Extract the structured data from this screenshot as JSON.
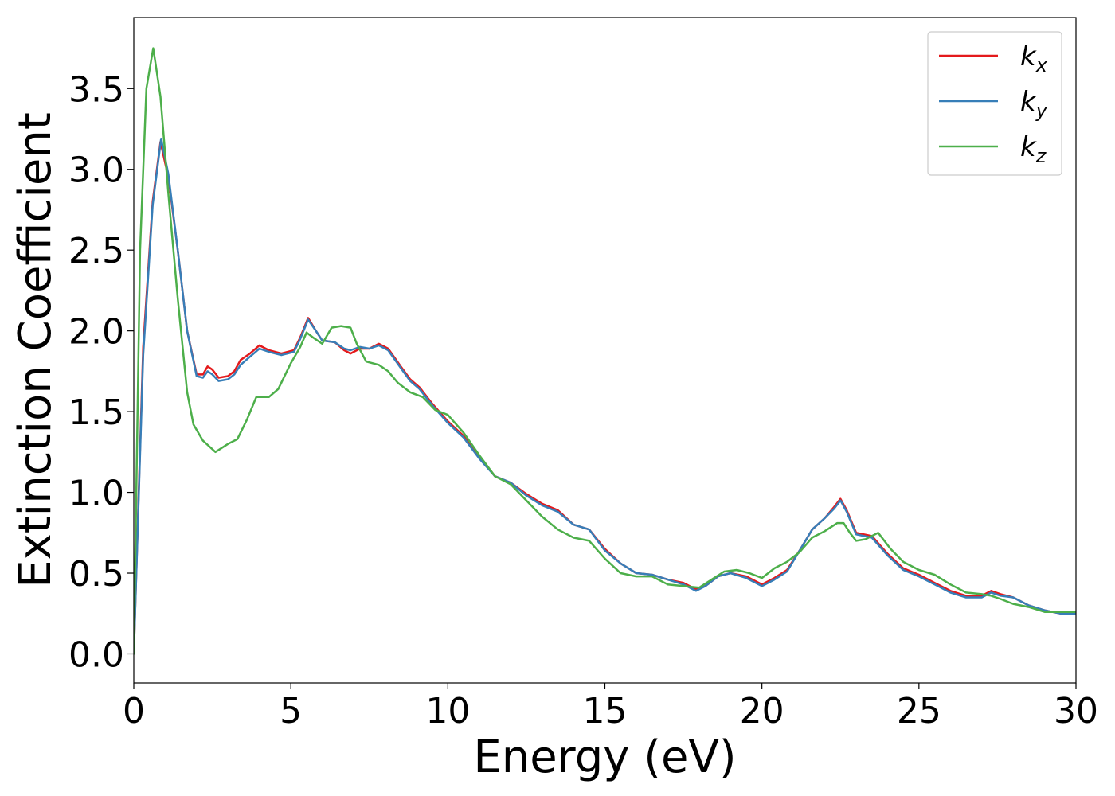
{
  "chart_data": {
    "type": "line",
    "title": "",
    "xlabel": "Energy (eV)",
    "ylabel": "Extinction Coefficient",
    "xlim": [
      0,
      30
    ],
    "ylim": [
      -0.18,
      3.94
    ],
    "xticks": [
      0,
      5,
      10,
      15,
      20,
      25,
      30
    ],
    "xtick_labels": [
      "0",
      "5",
      "10",
      "15",
      "20",
      "25",
      "30"
    ],
    "yticks": [
      0.0,
      0.5,
      1.0,
      1.5,
      2.0,
      2.5,
      3.0,
      3.5
    ],
    "ytick_labels": [
      "0.0",
      "0.5",
      "1.0",
      "1.5",
      "2.0",
      "2.5",
      "3.0",
      "3.5"
    ],
    "grid": false,
    "legend_position": "top-right",
    "series": [
      {
        "name": "k",
        "subscript": "x",
        "color": "#e41a1c",
        "points": [
          [
            0,
            0
          ],
          [
            0.3,
            1.9
          ],
          [
            0.6,
            2.8
          ],
          [
            0.85,
            3.17
          ],
          [
            1.1,
            2.95
          ],
          [
            1.4,
            2.5
          ],
          [
            1.7,
            2.0
          ],
          [
            2.0,
            1.73
          ],
          [
            2.2,
            1.73
          ],
          [
            2.35,
            1.78
          ],
          [
            2.5,
            1.76
          ],
          [
            2.7,
            1.71
          ],
          [
            3.0,
            1.72
          ],
          [
            3.2,
            1.75
          ],
          [
            3.4,
            1.82
          ],
          [
            3.7,
            1.86
          ],
          [
            4.0,
            1.91
          ],
          [
            4.3,
            1.88
          ],
          [
            4.7,
            1.86
          ],
          [
            5.1,
            1.88
          ],
          [
            5.3,
            1.96
          ],
          [
            5.55,
            2.08
          ],
          [
            5.8,
            2.0
          ],
          [
            6.0,
            1.94
          ],
          [
            6.4,
            1.93
          ],
          [
            6.7,
            1.88
          ],
          [
            6.9,
            1.86
          ],
          [
            7.2,
            1.89
          ],
          [
            7.5,
            1.89
          ],
          [
            7.8,
            1.92
          ],
          [
            8.1,
            1.89
          ],
          [
            8.5,
            1.78
          ],
          [
            8.8,
            1.7
          ],
          [
            9.1,
            1.65
          ],
          [
            9.5,
            1.55
          ],
          [
            10.0,
            1.44
          ],
          [
            10.5,
            1.35
          ],
          [
            11.0,
            1.22
          ],
          [
            11.5,
            1.1
          ],
          [
            12.0,
            1.06
          ],
          [
            12.5,
            0.99
          ],
          [
            13.0,
            0.93
          ],
          [
            13.5,
            0.89
          ],
          [
            14.0,
            0.8
          ],
          [
            14.5,
            0.77
          ],
          [
            15.0,
            0.65
          ],
          [
            15.5,
            0.56
          ],
          [
            16.0,
            0.5
          ],
          [
            16.5,
            0.49
          ],
          [
            17.0,
            0.46
          ],
          [
            17.5,
            0.44
          ],
          [
            17.9,
            0.4
          ],
          [
            18.2,
            0.42
          ],
          [
            18.6,
            0.48
          ],
          [
            19.0,
            0.5
          ],
          [
            19.5,
            0.48
          ],
          [
            20.0,
            0.43
          ],
          [
            20.4,
            0.47
          ],
          [
            20.8,
            0.52
          ],
          [
            21.2,
            0.64
          ],
          [
            21.6,
            0.77
          ],
          [
            22.0,
            0.84
          ],
          [
            22.3,
            0.91
          ],
          [
            22.5,
            0.96
          ],
          [
            22.7,
            0.89
          ],
          [
            23.0,
            0.75
          ],
          [
            23.5,
            0.73
          ],
          [
            24.0,
            0.62
          ],
          [
            24.5,
            0.53
          ],
          [
            25.0,
            0.49
          ],
          [
            25.5,
            0.44
          ],
          [
            26.0,
            0.39
          ],
          [
            26.5,
            0.36
          ],
          [
            27.0,
            0.36
          ],
          [
            27.3,
            0.39
          ],
          [
            27.6,
            0.37
          ],
          [
            28.0,
            0.35
          ],
          [
            28.5,
            0.3
          ],
          [
            29.0,
            0.27
          ],
          [
            29.5,
            0.25
          ],
          [
            30.0,
            0.25
          ]
        ]
      },
      {
        "name": "k",
        "subscript": "y",
        "color": "#377eb8",
        "points": [
          [
            0,
            0
          ],
          [
            0.3,
            1.85
          ],
          [
            0.6,
            2.78
          ],
          [
            0.87,
            3.19
          ],
          [
            1.1,
            2.97
          ],
          [
            1.4,
            2.5
          ],
          [
            1.7,
            2.0
          ],
          [
            2.0,
            1.72
          ],
          [
            2.2,
            1.71
          ],
          [
            2.35,
            1.75
          ],
          [
            2.5,
            1.73
          ],
          [
            2.7,
            1.69
          ],
          [
            3.0,
            1.7
          ],
          [
            3.2,
            1.73
          ],
          [
            3.4,
            1.79
          ],
          [
            3.7,
            1.84
          ],
          [
            4.0,
            1.89
          ],
          [
            4.3,
            1.87
          ],
          [
            4.7,
            1.85
          ],
          [
            5.1,
            1.87
          ],
          [
            5.3,
            1.95
          ],
          [
            5.55,
            2.07
          ],
          [
            5.8,
            2.0
          ],
          [
            6.0,
            1.94
          ],
          [
            6.4,
            1.93
          ],
          [
            6.7,
            1.89
          ],
          [
            6.9,
            1.88
          ],
          [
            7.2,
            1.9
          ],
          [
            7.5,
            1.89
          ],
          [
            7.8,
            1.91
          ],
          [
            8.1,
            1.88
          ],
          [
            8.5,
            1.77
          ],
          [
            8.8,
            1.69
          ],
          [
            9.1,
            1.64
          ],
          [
            9.5,
            1.54
          ],
          [
            10.0,
            1.43
          ],
          [
            10.5,
            1.34
          ],
          [
            11.0,
            1.21
          ],
          [
            11.5,
            1.1
          ],
          [
            12.0,
            1.06
          ],
          [
            12.5,
            0.98
          ],
          [
            13.0,
            0.92
          ],
          [
            13.5,
            0.88
          ],
          [
            14.0,
            0.8
          ],
          [
            14.5,
            0.77
          ],
          [
            15.0,
            0.64
          ],
          [
            15.5,
            0.56
          ],
          [
            16.0,
            0.5
          ],
          [
            16.5,
            0.49
          ],
          [
            17.0,
            0.46
          ],
          [
            17.5,
            0.43
          ],
          [
            17.9,
            0.39
          ],
          [
            18.2,
            0.42
          ],
          [
            18.6,
            0.48
          ],
          [
            19.0,
            0.5
          ],
          [
            19.5,
            0.47
          ],
          [
            20.0,
            0.42
          ],
          [
            20.4,
            0.46
          ],
          [
            20.8,
            0.51
          ],
          [
            21.2,
            0.64
          ],
          [
            21.6,
            0.77
          ],
          [
            22.0,
            0.84
          ],
          [
            22.3,
            0.9
          ],
          [
            22.5,
            0.95
          ],
          [
            22.7,
            0.88
          ],
          [
            23.0,
            0.74
          ],
          [
            23.5,
            0.72
          ],
          [
            24.0,
            0.61
          ],
          [
            24.5,
            0.52
          ],
          [
            25.0,
            0.48
          ],
          [
            25.5,
            0.43
          ],
          [
            26.0,
            0.38
          ],
          [
            26.5,
            0.35
          ],
          [
            27.0,
            0.35
          ],
          [
            27.3,
            0.38
          ],
          [
            27.6,
            0.36
          ],
          [
            28.0,
            0.35
          ],
          [
            28.5,
            0.3
          ],
          [
            29.0,
            0.27
          ],
          [
            29.5,
            0.25
          ],
          [
            30.0,
            0.25
          ]
        ]
      },
      {
        "name": "k",
        "subscript": "z",
        "color": "#4daf4a",
        "points": [
          [
            0,
            0
          ],
          [
            0.2,
            2.5
          ],
          [
            0.4,
            3.5
          ],
          [
            0.62,
            3.75
          ],
          [
            0.85,
            3.45
          ],
          [
            1.1,
            2.85
          ],
          [
            1.4,
            2.2
          ],
          [
            1.7,
            1.62
          ],
          [
            1.9,
            1.42
          ],
          [
            2.2,
            1.32
          ],
          [
            2.6,
            1.25
          ],
          [
            3.0,
            1.3
          ],
          [
            3.3,
            1.33
          ],
          [
            3.6,
            1.45
          ],
          [
            3.9,
            1.59
          ],
          [
            4.3,
            1.59
          ],
          [
            4.6,
            1.64
          ],
          [
            5.0,
            1.8
          ],
          [
            5.3,
            1.9
          ],
          [
            5.5,
            1.99
          ],
          [
            5.7,
            1.96
          ],
          [
            6.0,
            1.92
          ],
          [
            6.3,
            2.02
          ],
          [
            6.6,
            2.03
          ],
          [
            6.9,
            2.02
          ],
          [
            7.1,
            1.92
          ],
          [
            7.4,
            1.81
          ],
          [
            7.8,
            1.79
          ],
          [
            8.1,
            1.75
          ],
          [
            8.4,
            1.68
          ],
          [
            8.8,
            1.62
          ],
          [
            9.2,
            1.59
          ],
          [
            9.6,
            1.51
          ],
          [
            10.0,
            1.48
          ],
          [
            10.5,
            1.37
          ],
          [
            11.0,
            1.23
          ],
          [
            11.5,
            1.1
          ],
          [
            12.0,
            1.05
          ],
          [
            12.5,
            0.95
          ],
          [
            13.0,
            0.85
          ],
          [
            13.5,
            0.77
          ],
          [
            14.0,
            0.72
          ],
          [
            14.5,
            0.7
          ],
          [
            15.0,
            0.59
          ],
          [
            15.5,
            0.5
          ],
          [
            16.0,
            0.48
          ],
          [
            16.5,
            0.48
          ],
          [
            17.0,
            0.43
          ],
          [
            17.5,
            0.42
          ],
          [
            18.0,
            0.41
          ],
          [
            18.4,
            0.46
          ],
          [
            18.8,
            0.51
          ],
          [
            19.2,
            0.52
          ],
          [
            19.6,
            0.5
          ],
          [
            20.0,
            0.47
          ],
          [
            20.4,
            0.53
          ],
          [
            20.8,
            0.57
          ],
          [
            21.2,
            0.63
          ],
          [
            21.6,
            0.72
          ],
          [
            22.0,
            0.76
          ],
          [
            22.4,
            0.81
          ],
          [
            22.6,
            0.81
          ],
          [
            22.8,
            0.75
          ],
          [
            23.0,
            0.7
          ],
          [
            23.3,
            0.71
          ],
          [
            23.7,
            0.75
          ],
          [
            24.1,
            0.65
          ],
          [
            24.5,
            0.57
          ],
          [
            25.0,
            0.52
          ],
          [
            25.5,
            0.49
          ],
          [
            26.0,
            0.43
          ],
          [
            26.5,
            0.38
          ],
          [
            27.0,
            0.37
          ],
          [
            27.3,
            0.36
          ],
          [
            27.6,
            0.34
          ],
          [
            28.0,
            0.31
          ],
          [
            28.5,
            0.29
          ],
          [
            29.0,
            0.26
          ],
          [
            29.5,
            0.26
          ],
          [
            30.0,
            0.26
          ]
        ]
      }
    ]
  }
}
